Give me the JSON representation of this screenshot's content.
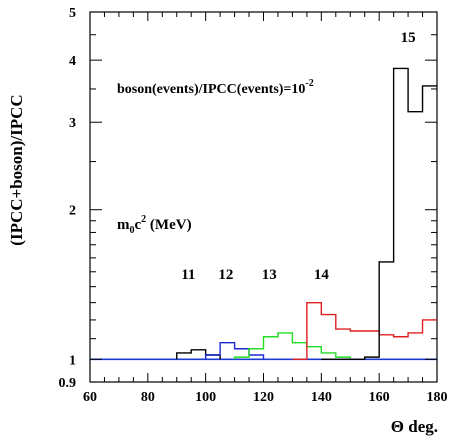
{
  "chart_data": {
    "type": "step",
    "title": "",
    "xlabel": "Θ deg.",
    "ylabel": "(IPCC+boson)/IPCC",
    "xlim": [
      60,
      180
    ],
    "ylim": [
      0.9,
      5
    ],
    "y_scale": "log",
    "grid": false,
    "x_ticks": [
      60,
      80,
      100,
      120,
      140,
      160,
      180
    ],
    "y_ticks": [
      0.9,
      1,
      2,
      3,
      4,
      5
    ],
    "reference_line": {
      "y": 1,
      "color": "#1a3fd0"
    },
    "annotations": {
      "ratio": {
        "main": "boson(events)/IPCC(events)=10",
        "exp": "-2"
      },
      "mass_label": {
        "m": "m",
        "sub": "0",
        "c": "c",
        "sup": "2",
        "unit": " (MeV)"
      }
    },
    "series": [
      {
        "label": "11",
        "color": "#000000",
        "bin_edges": [
          90,
          95,
          100,
          105
        ],
        "values": [
          1.03,
          1.045,
          1.02
        ]
      },
      {
        "label": "12",
        "color": "#1a2ad0",
        "bin_edges": [
          100,
          105,
          110,
          115,
          120
        ],
        "values": [
          1.02,
          1.08,
          1.05,
          1.02
        ]
      },
      {
        "label": "13",
        "color": "#22dd22",
        "bin_edges": [
          110,
          115,
          120,
          125,
          130,
          135,
          140,
          145,
          150
        ],
        "values": [
          1.01,
          1.05,
          1.11,
          1.13,
          1.08,
          1.06,
          1.03,
          1.01
        ]
      },
      {
        "label": "14",
        "color": "#e02020",
        "bin_edges": [
          130,
          135,
          140,
          145,
          150,
          155,
          160,
          165,
          170,
          175,
          180
        ],
        "values": [
          1.0,
          1.3,
          1.23,
          1.15,
          1.14,
          1.14,
          1.12,
          1.11,
          1.13,
          1.2
        ]
      },
      {
        "label": "15",
        "color": "#000000",
        "bin_edges": [
          140,
          145,
          150,
          155,
          160,
          165,
          170,
          175,
          180
        ],
        "values": [
          1.0,
          1.0,
          1.0,
          1.01,
          1.57,
          3.85,
          3.15,
          3.55
        ]
      }
    ],
    "series_label_positions": [
      {
        "label": "11",
        "x": 94,
        "y": 1.45
      },
      {
        "label": "12",
        "x": 107,
        "y": 1.45
      },
      {
        "label": "13",
        "x": 122,
        "y": 1.45
      },
      {
        "label": "14",
        "x": 140,
        "y": 1.45
      },
      {
        "label": "15",
        "x": 170,
        "y": 4.35
      }
    ]
  }
}
